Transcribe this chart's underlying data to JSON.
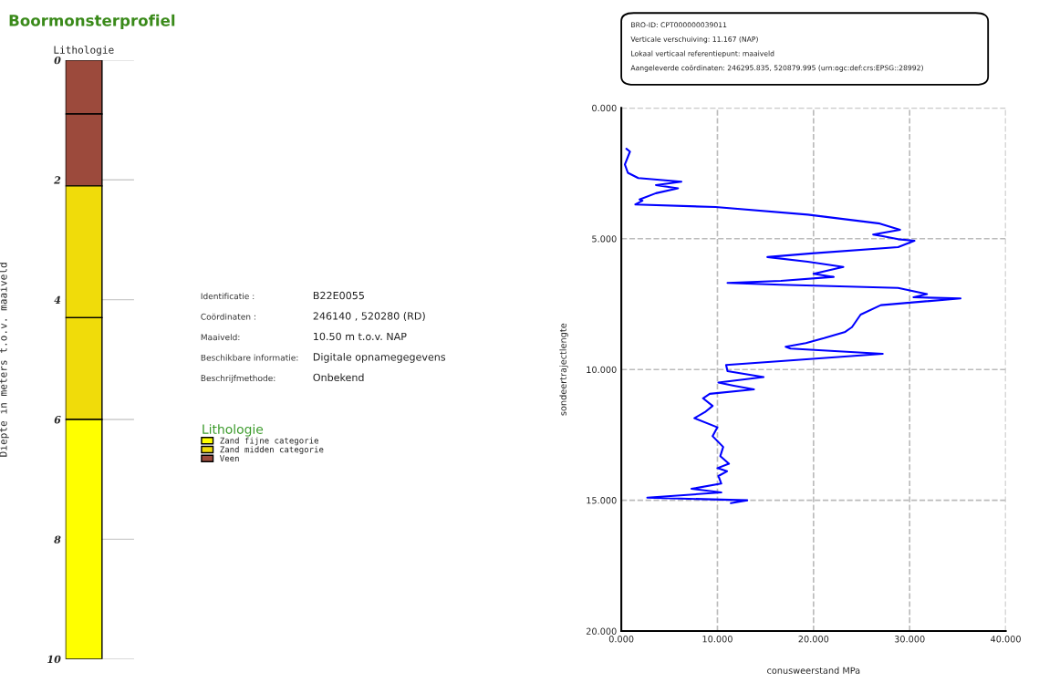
{
  "chart_data": [
    {
      "type": "bar",
      "title": "Boormonsterprofiel",
      "ylabel": "Diepte in meters t.o.v. maaiveld",
      "categories": [
        "Lithologie"
      ],
      "stacked": true,
      "series": [
        {
          "name": "Veen",
          "color": "#9c4a3c",
          "values": [
            0.9
          ]
        },
        {
          "color": "#9c4a3c",
          "values": [
            1.2
          ]
        },
        {
          "name": "Zand midden categorie",
          "color": "#f0dc0a",
          "values": [
            2.2
          ]
        },
        {
          "color": "#f0dc0a",
          "values": [
            1.7
          ]
        },
        {
          "name": "Zand fijne categorie",
          "color": "#ffff00",
          "values": [
            4.0
          ]
        }
      ],
      "ylim": [
        10,
        0
      ],
      "yticks": [
        0,
        2,
        4,
        6,
        8,
        10
      ],
      "grid": "y",
      "legend": "right",
      "legend_title": "Lithologie",
      "annotations": [
        "Identificatie :",
        "B22E0055",
        "Coördinaten :",
        "246140 , 520280 (RD)",
        "Maaiveld:",
        "10.50 m t.o.v. NAP",
        "Beschikbare informatie:",
        "Digitale opnamegegevens",
        "Beschrijfmethode:",
        "Onbekend"
      ]
    },
    {
      "type": "line",
      "xlabel": "conusweerstand MPa",
      "ylabel": "sondeertrajectlengte",
      "series": [
        {
          "color": "#0000ff",
          "line_style": "solid",
          "x": [
            0.53,
            0.9,
            0.37,
            0.68,
            1.76,
            6.25,
            3.6,
            5.9,
            3.6,
            1.9,
            2.2,
            1.46,
            9.8,
            19.4,
            26.9,
            29.0,
            26.2,
            27.2,
            28.8,
            30.5,
            28.8,
            19.8,
            15.2,
            19.4,
            23.1,
            20.0,
            22.1,
            16.6,
            11.05,
            16.6,
            28.8,
            31.8,
            30.4,
            35.3,
            27.0,
            24.9,
            24.0,
            23.3,
            21.1,
            19.2,
            17.1,
            17.6,
            27.2,
            16.6,
            10.9,
            11.05,
            14.8,
            10.1,
            11.7,
            13.8,
            9.2,
            8.5,
            9.5,
            8.7,
            7.6,
            10.0,
            9.5,
            10.6,
            10.3,
            11.2,
            10.0,
            11.0,
            10.1,
            10.4,
            7.3,
            10.4,
            2.7,
            13.1,
            11.4
          ],
          "values": [
            1.56,
            1.67,
            2.16,
            2.48,
            2.68,
            2.82,
            2.95,
            3.07,
            3.26,
            3.5,
            3.55,
            3.69,
            3.79,
            4.08,
            4.42,
            4.66,
            4.84,
            4.9,
            5.02,
            5.08,
            5.32,
            5.56,
            5.7,
            5.88,
            6.08,
            6.34,
            6.46,
            6.61,
            6.69,
            6.76,
            6.88,
            7.12,
            7.24,
            7.28,
            7.54,
            7.9,
            8.38,
            8.56,
            8.8,
            8.99,
            9.13,
            9.2,
            9.4,
            9.68,
            9.83,
            10.06,
            10.29,
            10.5,
            10.62,
            10.76,
            10.93,
            11.1,
            11.39,
            11.63,
            11.86,
            12.21,
            12.55,
            12.96,
            13.31,
            13.6,
            13.77,
            13.89,
            14.07,
            14.36,
            14.56,
            14.7,
            14.9,
            15.0,
            15.11
          ]
        }
      ],
      "xlim": [
        0,
        40
      ],
      "xticks": [
        {
          "value": 0,
          "label": "0.000"
        },
        {
          "value": 10,
          "label": "10.000"
        },
        {
          "value": 20,
          "label": "20.000"
        },
        {
          "value": 30,
          "label": "30.000"
        },
        {
          "value": 40,
          "label": "40.000"
        }
      ],
      "ylim": [
        20,
        0
      ],
      "yticks": [
        {
          "value": 0,
          "label": "0.000"
        },
        {
          "value": 5,
          "label": "5.000"
        },
        {
          "value": 10,
          "label": "10.000"
        },
        {
          "value": 15,
          "label": "15.000"
        },
        {
          "value": 20,
          "label": "20.000"
        }
      ],
      "grid": true,
      "annotations": [
        "BRO-ID: CPT000000039011",
        "Verticale verschuiving: 11.167 (NAP)",
        "Lokaal verticaal referentiepunt: maaiveld",
        "Aangeleverde coördinaten: 246295.835, 520879.995 (urn:ogc:def:crs:EPSG::28992)"
      ]
    }
  ]
}
